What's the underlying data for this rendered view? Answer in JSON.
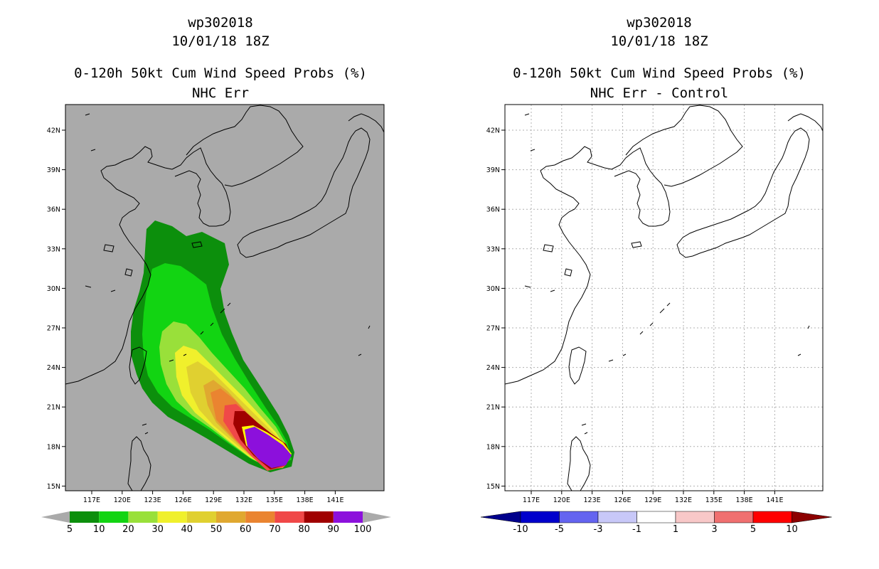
{
  "panels": [
    {
      "id": "left",
      "storm": "wp302018",
      "datetime": "10/01/18 18Z",
      "product": "0-120h 50kt Cum Wind Speed Probs (%)",
      "subtitle": "NHC Err",
      "colorbar": {
        "labels": [
          "5",
          "10",
          "20",
          "30",
          "40",
          "50",
          "60",
          "70",
          "80",
          "90",
          "100"
        ],
        "colors": [
          "#0c8f0c",
          "#12d412",
          "#99e03a",
          "#f0f02c",
          "#e0d030",
          "#e0a830",
          "#ea8430",
          "#f04848",
          "#a00000",
          "#8c10dc"
        ],
        "end_color": "#aaaaaa"
      },
      "colors": {
        "background": "#aaaaaa",
        "coast": "#000000"
      }
    },
    {
      "id": "right",
      "storm": "wp302018",
      "datetime": "10/01/18 18Z",
      "product": "0-120h 50kt Cum Wind Speed Probs (%)",
      "subtitle": "NHC Err - Control",
      "colorbar": {
        "labels": [
          "-10",
          "-5",
          "-3",
          "-1",
          "1",
          "3",
          "5",
          "10"
        ],
        "colors": [
          "#0000cc",
          "#6464f0",
          "#c8c8f8",
          "#ffffff",
          "#f8c8c8",
          "#f07070",
          "#ff0000"
        ],
        "low_color": "#00008c",
        "high_color": "#8c0000"
      },
      "colors": {
        "background": "#ffffff",
        "coast": "#000000",
        "grid": "#b0b0b0"
      }
    }
  ],
  "axes": {
    "x_ticks": [
      "117E",
      "120E",
      "123E",
      "126E",
      "129E",
      "132E",
      "135E",
      "138E",
      "141E"
    ],
    "y_ticks": [
      "42N",
      "39N",
      "36N",
      "33N",
      "30N",
      "27N",
      "24N",
      "21N",
      "18N",
      "15N"
    ]
  }
}
